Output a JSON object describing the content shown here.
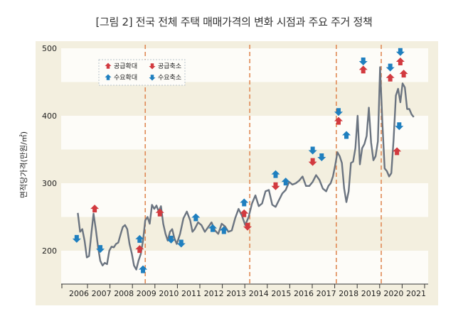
{
  "chart_data": {
    "type": "line",
    "title": "[그림 2] 전국 전체 주택 매매가격의 변화 시점과 주요 주거 정책",
    "xlabel": "",
    "ylabel": "면적당가격(만원/㎡)",
    "xlim": [
      2005.2,
      2021.6
    ],
    "ylim": [
      150,
      505
    ],
    "x_ticks": [
      2006,
      2007,
      2008,
      2009,
      2010,
      2011,
      2012,
      2013,
      2014,
      2015,
      2016,
      2017,
      2018,
      2019,
      2020,
      2021
    ],
    "x_tick_labels": [
      "2006",
      "2007",
      "2008",
      "2009",
      "2010",
      "2011",
      "2012",
      "2013",
      "2014",
      "2015",
      "2016",
      "2017",
      "2018",
      "2019",
      "2020",
      "2021"
    ],
    "y_ticks": [
      200,
      300,
      400,
      500
    ],
    "y_tick_labels": [
      "200",
      "300",
      "400",
      "500"
    ],
    "bands": [
      [
        450,
        500
      ],
      [
        350,
        400
      ],
      [
        250,
        300
      ],
      [
        150,
        200
      ]
    ],
    "grid": false,
    "legend_position": "top-left",
    "colors": {
      "line": "#6b7480",
      "supply": "#d23a3f",
      "demand": "#1f7fbf",
      "divider": "#e08a56",
      "panel": "#f3efdf",
      "band_white": "#fdfcf8",
      "band_beige": "#f3efdf"
    },
    "legend": [
      {
        "label": "공급확대",
        "kind": "supply",
        "direction": "up"
      },
      {
        "label": "공급축소",
        "kind": "supply",
        "direction": "down"
      },
      {
        "label": "수요확대",
        "kind": "demand",
        "direction": "up"
      },
      {
        "label": "수요축소",
        "kind": "demand",
        "direction": "down"
      }
    ],
    "dividers_x": [
      2008.95,
      2013.6,
      2017.45,
      2019.45
    ],
    "series": [
      {
        "name": "면적당가격",
        "x": [
          2005.95,
          2006.05,
          2006.15,
          2006.25,
          2006.35,
          2006.45,
          2006.55,
          2006.65,
          2006.75,
          2006.85,
          2006.95,
          2007.05,
          2007.15,
          2007.25,
          2007.35,
          2007.45,
          2007.55,
          2007.65,
          2007.75,
          2007.85,
          2007.95,
          2008.05,
          2008.15,
          2008.25,
          2008.35,
          2008.45,
          2008.55,
          2008.65,
          2008.75,
          2008.85,
          2008.95,
          2009.05,
          2009.15,
          2009.25,
          2009.35,
          2009.45,
          2009.55,
          2009.65,
          2009.75,
          2009.85,
          2009.95,
          2010.05,
          2010.15,
          2010.25,
          2010.35,
          2010.5,
          2010.65,
          2010.8,
          2010.95,
          2011.05,
          2011.15,
          2011.3,
          2011.45,
          2011.6,
          2011.75,
          2011.9,
          2012.05,
          2012.2,
          2012.35,
          2012.5,
          2012.65,
          2012.8,
          2012.95,
          2013.1,
          2013.25,
          2013.4,
          2013.55,
          2013.7,
          2013.85,
          2014.0,
          2014.15,
          2014.3,
          2014.45,
          2014.6,
          2014.75,
          2014.9,
          2015.05,
          2015.2,
          2015.35,
          2015.5,
          2015.65,
          2015.8,
          2015.95,
          2016.1,
          2016.25,
          2016.4,
          2016.55,
          2016.7,
          2016.85,
          2017.0,
          2017.1,
          2017.2,
          2017.3,
          2017.4,
          2017.5,
          2017.6,
          2017.7,
          2017.8,
          2017.9,
          2018.0,
          2018.1,
          2018.2,
          2018.3,
          2018.4,
          2018.5,
          2018.6,
          2018.7,
          2018.8,
          2018.9,
          2019.0,
          2019.1,
          2019.2,
          2019.3,
          2019.4,
          2019.5,
          2019.6,
          2019.7,
          2019.8,
          2019.9,
          2020.0,
          2020.1,
          2020.2,
          2020.3,
          2020.4,
          2020.5,
          2020.6,
          2020.7,
          2020.8,
          2020.9
        ],
        "values": [
          256,
          228,
          232,
          215,
          190,
          192,
          225,
          255,
          232,
          205,
          185,
          178,
          182,
          180,
          200,
          206,
          205,
          210,
          212,
          224,
          235,
          238,
          232,
          210,
          196,
          178,
          172,
          185,
          195,
          215,
          245,
          250,
          240,
          268,
          262,
          267,
          258,
          266,
          240,
          225,
          215,
          228,
          232,
          218,
          210,
          225,
          248,
          258,
          245,
          228,
          232,
          242,
          238,
          228,
          235,
          242,
          230,
          225,
          240,
          236,
          228,
          230,
          248,
          262,
          252,
          238,
          250,
          270,
          282,
          266,
          270,
          288,
          290,
          268,
          265,
          275,
          285,
          290,
          302,
          298,
          300,
          304,
          310,
          296,
          296,
          302,
          312,
          305,
          292,
          288,
          296,
          300,
          310,
          326,
          346,
          340,
          330,
          292,
          272,
          288,
          330,
          332,
          352,
          400,
          328,
          352,
          358,
          370,
          412,
          360,
          334,
          340,
          362,
          472,
          390,
          322,
          318,
          310,
          315,
          365,
          430,
          440,
          420,
          448,
          442,
          410,
          410,
          402,
          398
        ]
      }
    ],
    "policy_markers": [
      {
        "x": 2005.9,
        "y": 218,
        "kind": "demand",
        "direction": "down"
      },
      {
        "x": 2006.7,
        "y": 262,
        "kind": "supply",
        "direction": "up"
      },
      {
        "x": 2006.95,
        "y": 203,
        "kind": "demand",
        "direction": "down"
      },
      {
        "x": 2008.7,
        "y": 202,
        "kind": "supply",
        "direction": "up"
      },
      {
        "x": 2008.7,
        "y": 217,
        "kind": "demand",
        "direction": "up"
      },
      {
        "x": 2008.85,
        "y": 172,
        "kind": "demand",
        "direction": "up"
      },
      {
        "x": 2009.6,
        "y": 256,
        "kind": "supply",
        "direction": "up"
      },
      {
        "x": 2010.1,
        "y": 217,
        "kind": "demand",
        "direction": "down"
      },
      {
        "x": 2010.55,
        "y": 211,
        "kind": "demand",
        "direction": "down"
      },
      {
        "x": 2011.2,
        "y": 249,
        "kind": "demand",
        "direction": "up"
      },
      {
        "x": 2011.95,
        "y": 233,
        "kind": "demand",
        "direction": "up"
      },
      {
        "x": 2012.45,
        "y": 230,
        "kind": "demand",
        "direction": "up"
      },
      {
        "x": 2013.35,
        "y": 255,
        "kind": "supply",
        "direction": "up"
      },
      {
        "x": 2013.35,
        "y": 271,
        "kind": "demand",
        "direction": "up"
      },
      {
        "x": 2013.5,
        "y": 236,
        "kind": "supply",
        "direction": "down"
      },
      {
        "x": 2014.75,
        "y": 296,
        "kind": "supply",
        "direction": "down"
      },
      {
        "x": 2014.75,
        "y": 313,
        "kind": "demand",
        "direction": "up"
      },
      {
        "x": 2015.2,
        "y": 302,
        "kind": "demand",
        "direction": "up"
      },
      {
        "x": 2016.4,
        "y": 332,
        "kind": "supply",
        "direction": "down"
      },
      {
        "x": 2016.4,
        "y": 349,
        "kind": "demand",
        "direction": "down"
      },
      {
        "x": 2016.8,
        "y": 339,
        "kind": "demand",
        "direction": "down"
      },
      {
        "x": 2017.55,
        "y": 392,
        "kind": "supply",
        "direction": "up"
      },
      {
        "x": 2017.55,
        "y": 406,
        "kind": "demand",
        "direction": "down"
      },
      {
        "x": 2017.9,
        "y": 371,
        "kind": "demand",
        "direction": "up"
      },
      {
        "x": 2018.65,
        "y": 468,
        "kind": "supply",
        "direction": "up"
      },
      {
        "x": 2018.65,
        "y": 481,
        "kind": "demand",
        "direction": "down"
      },
      {
        "x": 2019.85,
        "y": 456,
        "kind": "supply",
        "direction": "up"
      },
      {
        "x": 2019.85,
        "y": 472,
        "kind": "demand",
        "direction": "down"
      },
      {
        "x": 2020.15,
        "y": 347,
        "kind": "supply",
        "direction": "up"
      },
      {
        "x": 2020.25,
        "y": 385,
        "kind": "demand",
        "direction": "down"
      },
      {
        "x": 2020.3,
        "y": 480,
        "kind": "supply",
        "direction": "up"
      },
      {
        "x": 2020.3,
        "y": 495,
        "kind": "demand",
        "direction": "down"
      },
      {
        "x": 2020.45,
        "y": 462,
        "kind": "supply",
        "direction": "up"
      }
    ]
  }
}
